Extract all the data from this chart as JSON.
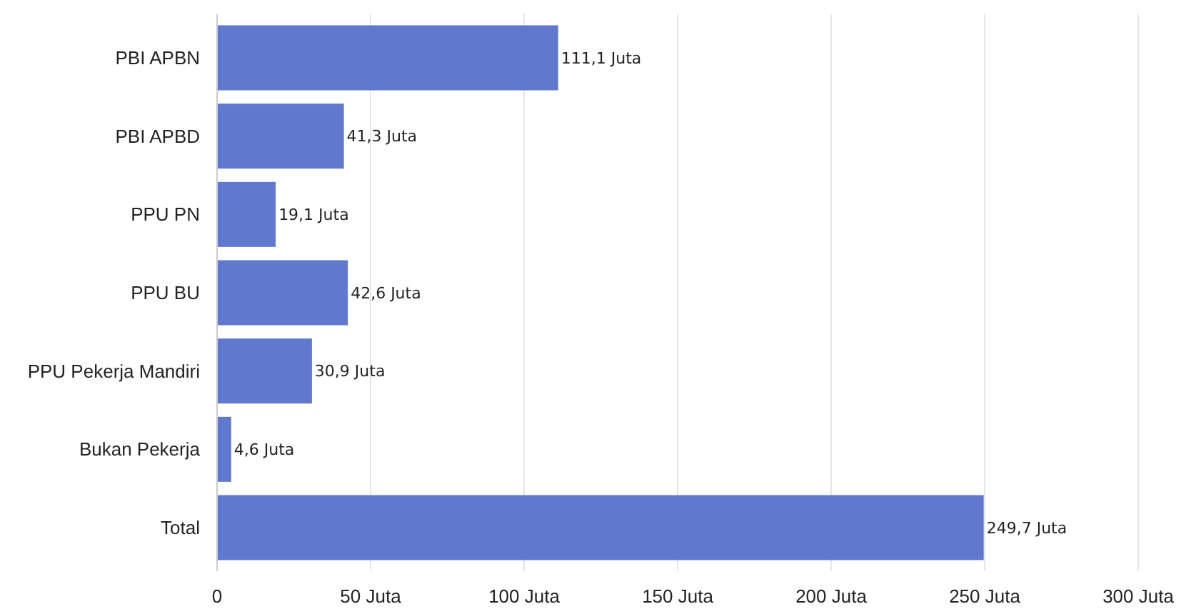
{
  "chart_data": {
    "type": "bar",
    "orientation": "horizontal",
    "categories": [
      "PBI APBN",
      "PBI APBD",
      "PPU PN",
      "PPU BU",
      "PPU Pekerja Mandiri",
      "Bukan Pekerja",
      "Total"
    ],
    "values": [
      111.1,
      41.3,
      19.1,
      42.6,
      30.9,
      4.6,
      249.7
    ],
    "value_labels": [
      "111,1 Juta",
      "41,3 Juta",
      "19,1 Juta",
      "42,6 Juta",
      "30,9 Juta",
      "4,6 Juta",
      "249,7 Juta"
    ],
    "color": "#6079cf",
    "xlim": [
      0,
      300
    ],
    "xticks": [
      0,
      {
        "value": 50,
        "label": "50 Juta"
      },
      {
        "value": 100,
        "label": "100 Juta"
      },
      {
        "value": 150,
        "label": "150 Juta"
      },
      {
        "value": 200,
        "label": "200 Juta"
      },
      {
        "value": 250,
        "label": "250 Juta"
      },
      {
        "value": 300,
        "label": "300 Juta"
      }
    ],
    "grid": "x"
  }
}
